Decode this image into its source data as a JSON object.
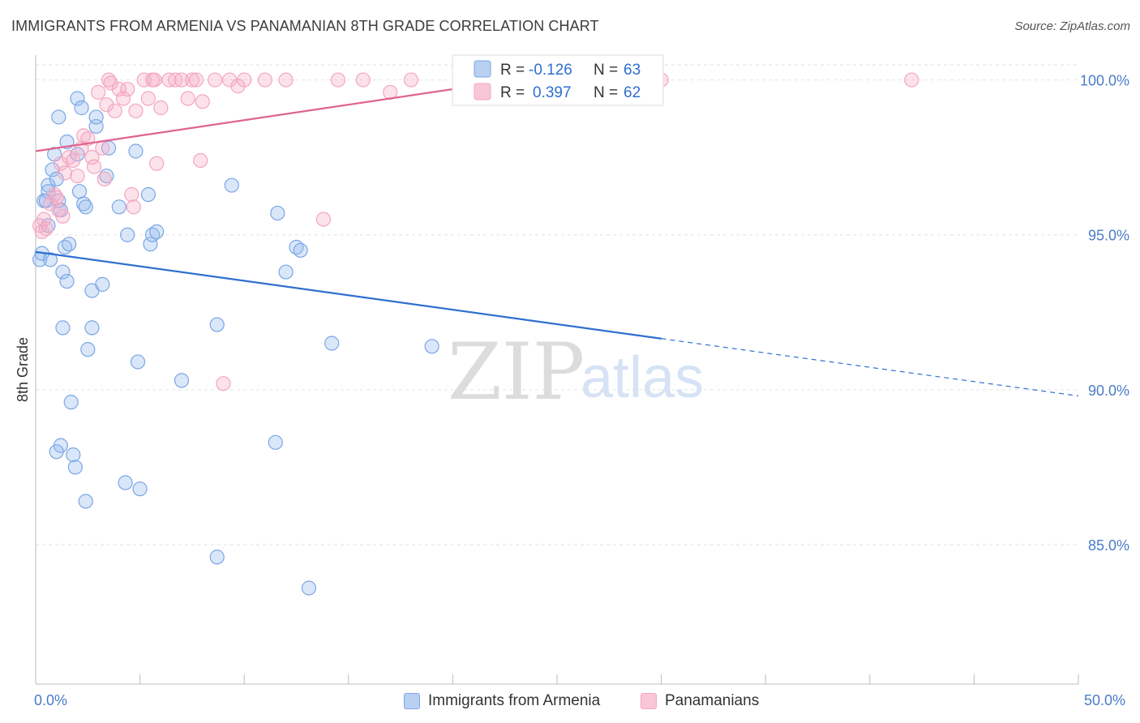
{
  "title": "IMMIGRANTS FROM ARMENIA VS PANAMANIAN 8TH GRADE CORRELATION CHART",
  "source": "Source: ZipAtlas.com",
  "watermark": {
    "zip": "ZIP",
    "atlas": "atlas"
  },
  "chart_data": {
    "type": "scatter",
    "ylabel": "8th Grade",
    "xlim": [
      0,
      50
    ],
    "ylim": [
      80.5,
      100.8
    ],
    "y_ticks": [
      85,
      90,
      95,
      100
    ],
    "y_tick_labels": [
      "85.0%",
      "90.0%",
      "95.0%",
      "100.0%"
    ],
    "x_tick_labels": [
      "0.0%",
      "50.0%"
    ],
    "x_minor_ticks": [
      0,
      5,
      10,
      15,
      20,
      25,
      30,
      35,
      40,
      45,
      50
    ],
    "grid": true,
    "legend": {
      "position": "top-center",
      "rows": [
        {
          "r_label": "R =",
          "r_value": "-0.126",
          "n_label": "N =",
          "n_value": "63"
        },
        {
          "r_label": "R =",
          "r_value": "0.397",
          "n_label": "N =",
          "n_value": "62"
        }
      ]
    },
    "series": [
      {
        "name": "Immigrants from Armenia",
        "color": "#7aa6e6",
        "line_color": "#2f6fd0",
        "trend": {
          "x0": 0,
          "y0": 94.45,
          "x1": 30,
          "y1": 91.65,
          "dash_to_x": 50,
          "dash_to_y": 89.8
        },
        "points": [
          [
            0.2,
            94.2
          ],
          [
            0.3,
            94.4
          ],
          [
            0.4,
            96.1
          ],
          [
            0.6,
            96.6
          ],
          [
            0.6,
            96.4
          ],
          [
            0.6,
            95.3
          ],
          [
            0.7,
            94.2
          ],
          [
            0.8,
            97.1
          ],
          [
            0.9,
            97.6
          ],
          [
            1.0,
            96.8
          ],
          [
            1.1,
            96.1
          ],
          [
            1.2,
            95.8
          ],
          [
            1.1,
            98.8
          ],
          [
            1.2,
            88.2
          ],
          [
            1.3,
            92.0
          ],
          [
            1.3,
            93.8
          ],
          [
            1.4,
            94.6
          ],
          [
            1.5,
            98.0
          ],
          [
            1.6,
            94.7
          ],
          [
            1.7,
            89.6
          ],
          [
            1.8,
            87.9
          ],
          [
            1.9,
            87.5
          ],
          [
            2.0,
            99.4
          ],
          [
            2.0,
            97.6
          ],
          [
            2.1,
            96.4
          ],
          [
            2.2,
            99.1
          ],
          [
            2.3,
            96.0
          ],
          [
            2.4,
            86.4
          ],
          [
            2.4,
            95.9
          ],
          [
            2.5,
            91.3
          ],
          [
            2.7,
            93.2
          ],
          [
            2.7,
            92.0
          ],
          [
            2.9,
            98.5
          ],
          [
            2.9,
            98.8
          ],
          [
            3.2,
            93.4
          ],
          [
            3.4,
            96.9
          ],
          [
            3.5,
            97.8
          ],
          [
            4.0,
            95.9
          ],
          [
            4.3,
            87.0
          ],
          [
            4.4,
            95.0
          ],
          [
            4.8,
            97.7
          ],
          [
            4.9,
            90.9
          ],
          [
            5.0,
            86.8
          ],
          [
            5.4,
            96.3
          ],
          [
            5.5,
            94.7
          ],
          [
            5.6,
            95.0
          ],
          [
            5.8,
            95.1
          ],
          [
            7.0,
            90.3
          ],
          [
            8.7,
            92.1
          ],
          [
            8.7,
            84.6
          ],
          [
            9.4,
            96.6
          ],
          [
            11.5,
            88.3
          ],
          [
            11.6,
            95.7
          ],
          [
            12.0,
            93.8
          ],
          [
            12.5,
            94.6
          ],
          [
            12.7,
            94.5
          ],
          [
            13.1,
            83.6
          ],
          [
            14.2,
            91.5
          ],
          [
            19.0,
            91.4
          ],
          [
            29.3,
            100.0
          ],
          [
            1.0,
            88.0
          ],
          [
            0.5,
            96.1
          ],
          [
            1.5,
            93.5
          ]
        ]
      },
      {
        "name": "Panamanians",
        "color": "#f4a6c0",
        "line_color": "#e0628e",
        "trend": {
          "x0": 0,
          "y0": 97.7,
          "x1": 23,
          "y1": 100.0
        },
        "points": [
          [
            0.2,
            95.3
          ],
          [
            0.3,
            95.1
          ],
          [
            0.4,
            95.5
          ],
          [
            0.5,
            95.2
          ],
          [
            0.7,
            96.0
          ],
          [
            0.9,
            96.3
          ],
          [
            1.0,
            96.2
          ],
          [
            1.1,
            95.8
          ],
          [
            1.2,
            97.3
          ],
          [
            1.3,
            95.6
          ],
          [
            1.4,
            97.0
          ],
          [
            1.6,
            97.5
          ],
          [
            1.8,
            97.4
          ],
          [
            2.0,
            96.9
          ],
          [
            2.2,
            97.8
          ],
          [
            2.3,
            98.2
          ],
          [
            2.5,
            98.1
          ],
          [
            2.7,
            97.5
          ],
          [
            2.8,
            97.2
          ],
          [
            3.0,
            99.6
          ],
          [
            3.2,
            97.8
          ],
          [
            3.3,
            96.8
          ],
          [
            3.4,
            99.2
          ],
          [
            3.5,
            100.0
          ],
          [
            3.6,
            99.9
          ],
          [
            3.8,
            99.0
          ],
          [
            4.0,
            99.7
          ],
          [
            4.2,
            99.4
          ],
          [
            4.4,
            99.7
          ],
          [
            4.6,
            96.3
          ],
          [
            4.7,
            95.9
          ],
          [
            4.8,
            99.0
          ],
          [
            5.2,
            100.0
          ],
          [
            5.4,
            99.4
          ],
          [
            5.6,
            100.0
          ],
          [
            5.7,
            100.0
          ],
          [
            5.8,
            97.3
          ],
          [
            6.0,
            99.1
          ],
          [
            6.4,
            100.0
          ],
          [
            6.7,
            100.0
          ],
          [
            7.0,
            100.0
          ],
          [
            7.3,
            99.4
          ],
          [
            7.5,
            100.0
          ],
          [
            7.7,
            100.0
          ],
          [
            7.9,
            97.4
          ],
          [
            8.0,
            99.3
          ],
          [
            8.6,
            100.0
          ],
          [
            9.0,
            90.2
          ],
          [
            9.3,
            100.0
          ],
          [
            9.7,
            99.8
          ],
          [
            10.0,
            100.0
          ],
          [
            11.0,
            100.0
          ],
          [
            12.0,
            100.0
          ],
          [
            13.8,
            95.5
          ],
          [
            14.5,
            100.0
          ],
          [
            15.7,
            100.0
          ],
          [
            17.0,
            99.6
          ],
          [
            18.0,
            100.0
          ],
          [
            22.0,
            100.0
          ],
          [
            23.0,
            100.0
          ],
          [
            30.0,
            100.0
          ],
          [
            42.0,
            100.0
          ]
        ]
      }
    ]
  }
}
